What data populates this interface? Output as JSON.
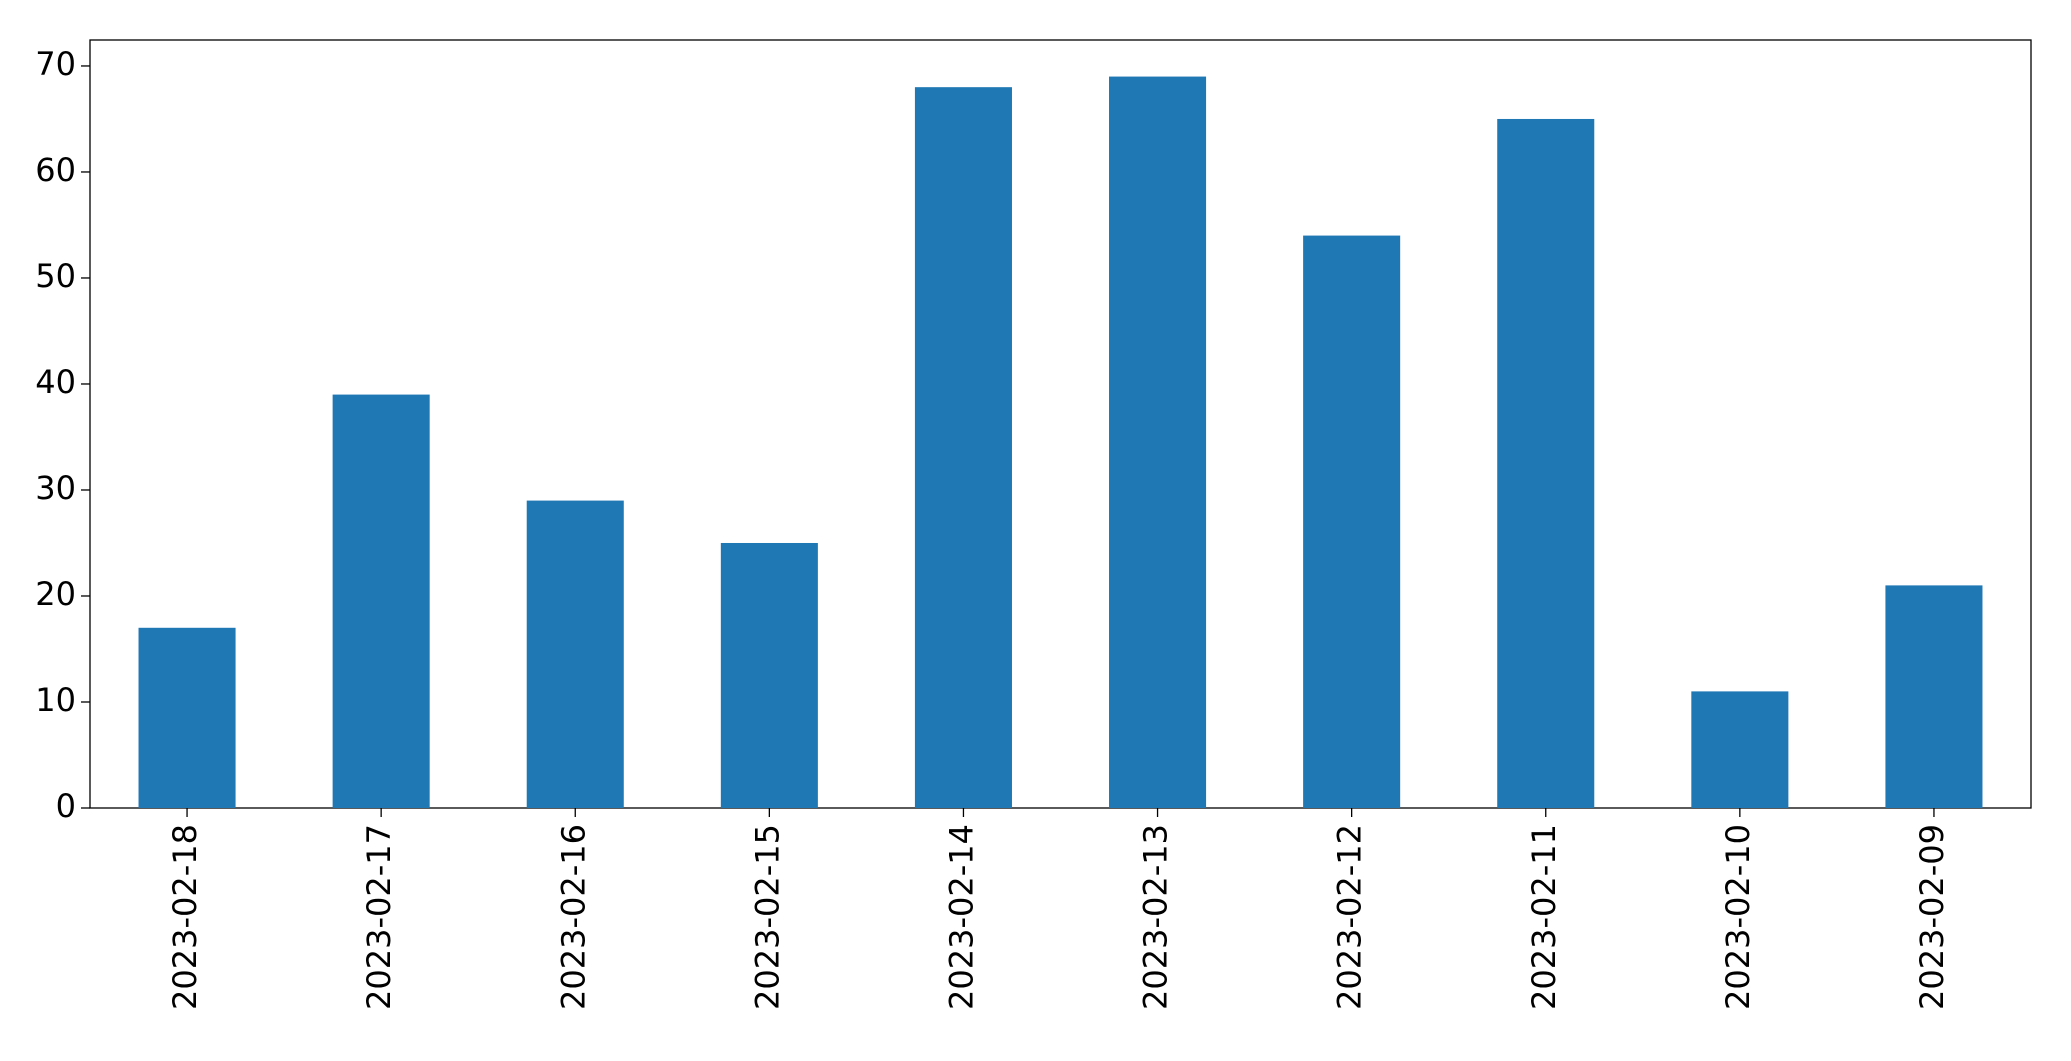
{
  "chart_data": {
    "type": "bar",
    "categories": [
      "2023-02-18",
      "2023-02-17",
      "2023-02-16",
      "2023-02-15",
      "2023-02-14",
      "2023-02-13",
      "2023-02-12",
      "2023-02-11",
      "2023-02-10",
      "2023-02-09"
    ],
    "values": [
      17,
      39,
      29,
      25,
      68,
      69,
      54,
      65,
      11,
      21
    ],
    "color": "#1f77b4",
    "ylim": [
      0,
      72.45
    ],
    "yticks": [
      0,
      10,
      20,
      30,
      40,
      50,
      60,
      70
    ],
    "grid": false
  }
}
